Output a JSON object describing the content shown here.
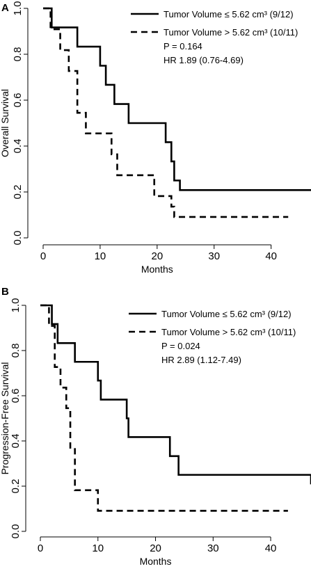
{
  "chart_data": [
    {
      "type": "line",
      "panel_label": "A",
      "xlabel": "Months",
      "ylabel": "Overall Survival",
      "xlim": [
        0,
        47
      ],
      "ylim": [
        0,
        1.0
      ],
      "x_ticks": [
        "0",
        "10",
        "20",
        "30",
        "40"
      ],
      "x_tick_values": [
        0,
        10,
        20,
        30,
        40
      ],
      "y_ticks": [
        "0.0",
        "0.2",
        "0.4",
        "0.6",
        "0.8",
        "1.0"
      ],
      "y_tick_values": [
        0,
        0.2,
        0.4,
        0.6,
        0.8,
        1.0
      ],
      "grid": false,
      "legend_position": "top-right",
      "annotations": [
        "P = 0.164",
        "HR 1.89 (0.76-4.69)"
      ],
      "series": [
        {
          "name": "Tumor Volume ≤ 5.62 cm³ (9/12)",
          "style": "solid",
          "color": "#000000",
          "x": [
            0,
            1,
            1.5,
            2,
            6,
            10,
            11,
            12.5,
            15,
            21.5,
            22.5,
            23,
            24,
            47
          ],
          "y": [
            1.0,
            1.0,
            0.917,
            0.917,
            0.833,
            0.75,
            0.667,
            0.583,
            0.5,
            0.417,
            0.333,
            0.25,
            0.208,
            0.208
          ]
        },
        {
          "name": "Tumor Volume > 5.62 cm³ (10/11)",
          "style": "dashed",
          "color": "#000000",
          "x": [
            0,
            1.3,
            2,
            3,
            4.5,
            6,
            7.5,
            12,
            13,
            19.5,
            22.5,
            23,
            43
          ],
          "y": [
            1.0,
            0.909,
            0.909,
            0.818,
            0.727,
            0.545,
            0.455,
            0.364,
            0.273,
            0.182,
            0.136,
            0.091,
            0.091
          ]
        }
      ]
    },
    {
      "type": "line",
      "panel_label": "B",
      "xlabel": "Months",
      "ylabel": "Progression-Free Survival",
      "xlim": [
        0,
        47
      ],
      "ylim": [
        0,
        1.0
      ],
      "x_ticks": [
        "0",
        "10",
        "20",
        "30",
        "40"
      ],
      "x_tick_values": [
        0,
        10,
        20,
        30,
        40
      ],
      "y_ticks": [
        "0.0",
        "0.2",
        "0.4",
        "0.6",
        "0.8",
        "1.0"
      ],
      "y_tick_values": [
        0,
        0.2,
        0.4,
        0.6,
        0.8,
        1.0
      ],
      "grid": false,
      "legend_position": "top-right",
      "annotations": [
        "P = 0.024",
        "HR 2.89 (1.12-7.49)"
      ],
      "series": [
        {
          "name": "Tumor Volume ≤ 5.62 cm³ (9/12)",
          "style": "solid",
          "color": "#000000",
          "x": [
            0,
            2,
            3,
            6,
            10,
            10.5,
            15,
            15.3,
            22.5,
            24,
            47
          ],
          "y": [
            1.0,
            0.917,
            0.833,
            0.75,
            0.667,
            0.583,
            0.5,
            0.417,
            0.333,
            0.25,
            0.208
          ]
        },
        {
          "name": "Tumor Volume > 5.62 cm³ (10/11)",
          "style": "dashed",
          "color": "#000000",
          "x": [
            0,
            1.5,
            2.5,
            3.5,
            4.5,
            5.2,
            6,
            10,
            43
          ],
          "y": [
            1.0,
            0.909,
            0.727,
            0.636,
            0.545,
            0.364,
            0.182,
            0.091,
            0.091
          ]
        }
      ]
    }
  ]
}
